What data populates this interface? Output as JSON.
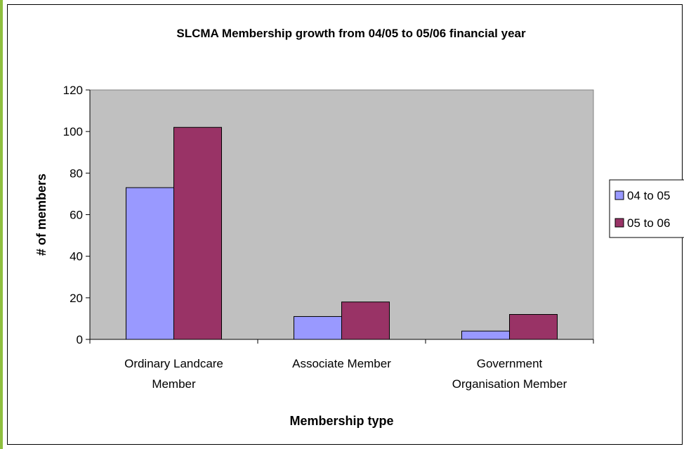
{
  "chart_data": {
    "type": "bar",
    "title": "SLCMA Membership growth from 04/05 to 05/06 financial year",
    "xlabel": "Membership type",
    "ylabel": "# of members",
    "ylim": [
      0,
      120
    ],
    "yticks": [
      0,
      20,
      40,
      60,
      80,
      100,
      120
    ],
    "categories": [
      [
        "Ordinary Landcare",
        "Member"
      ],
      [
        "Associate Member"
      ],
      [
        "Government",
        "Organisation Member"
      ]
    ],
    "series": [
      {
        "name": "04 to 05",
        "values": [
          73,
          11,
          4
        ],
        "color": "#9999ff"
      },
      {
        "name": "05 to 06",
        "values": [
          102,
          18,
          12
        ],
        "color": "#993366"
      }
    ],
    "plot_background": "#c0c0c0",
    "grid": false,
    "legend": "right"
  }
}
